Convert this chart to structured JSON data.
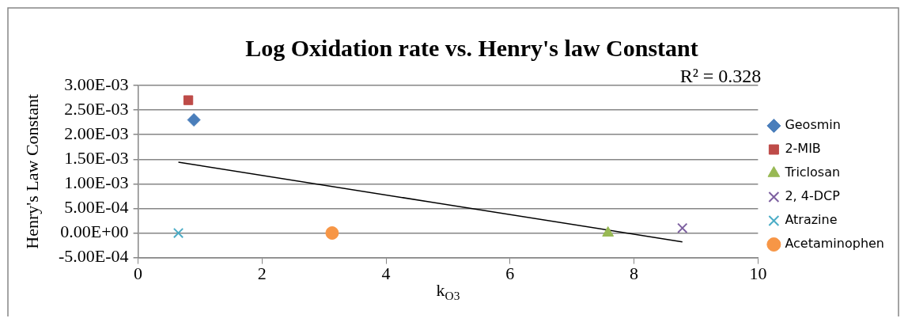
{
  "chart_data": {
    "type": "scatter",
    "title": "Log Oxidation rate vs. Henry's law Constant",
    "xlabel": "k$_{O3}$",
    "ylabel": "Henry's Law Constant",
    "xlim": [
      0,
      10
    ],
    "xticks": [
      0,
      2,
      4,
      6,
      8,
      10
    ],
    "ylim": [
      -0.0005,
      0.003
    ],
    "yticks": [
      {
        "value": -0.0005,
        "label": "-5.00E-04"
      },
      {
        "value": 0,
        "label": "0.00E+00"
      },
      {
        "value": 0.0005,
        "label": "5.00E-04"
      },
      {
        "value": 0.001,
        "label": "1.00E-03"
      },
      {
        "value": 0.0015,
        "label": "1.50E-03"
      },
      {
        "value": 0.002,
        "label": "2.00E-03"
      },
      {
        "value": 0.0025,
        "label": "2.50E-03"
      },
      {
        "value": 0.003,
        "label": "3.00E-03"
      }
    ],
    "grid": "y",
    "legend": "right",
    "annotations": [
      "R² = 0.328"
    ],
    "series": [
      {
        "name": "Geosmin",
        "color": "#4a7ebb",
        "marker": "diamond",
        "x": [
          0.9
        ],
        "values": [
          0.0023
        ]
      },
      {
        "name": "2-MIB",
        "color": "#be4b48",
        "marker": "square",
        "x": [
          0.81
        ],
        "values": [
          0.0027
        ]
      },
      {
        "name": "Triclosan",
        "color": "#98b954",
        "marker": "triangle",
        "x": [
          7.58
        ],
        "values": [
          0
        ]
      },
      {
        "name": "2, 4-DCP",
        "color": "#7d60a0",
        "marker": "cross",
        "x": [
          8.78
        ],
        "values": [
          0.0001
        ]
      },
      {
        "name": "Atrazine",
        "color": "#4bacc6",
        "marker": "cross",
        "x": [
          0.65
        ],
        "values": [
          0
        ]
      },
      {
        "name": "Acetaminophen",
        "color": "#f79646",
        "marker": "circle",
        "x": [
          3.13
        ],
        "values": [
          0
        ]
      },
      {
        "type": "line",
        "color": "#000000",
        "marker": "none",
        "x": [
          0.65,
          8.78
        ],
        "values": [
          0.00144,
          -0.00018
        ]
      }
    ]
  }
}
